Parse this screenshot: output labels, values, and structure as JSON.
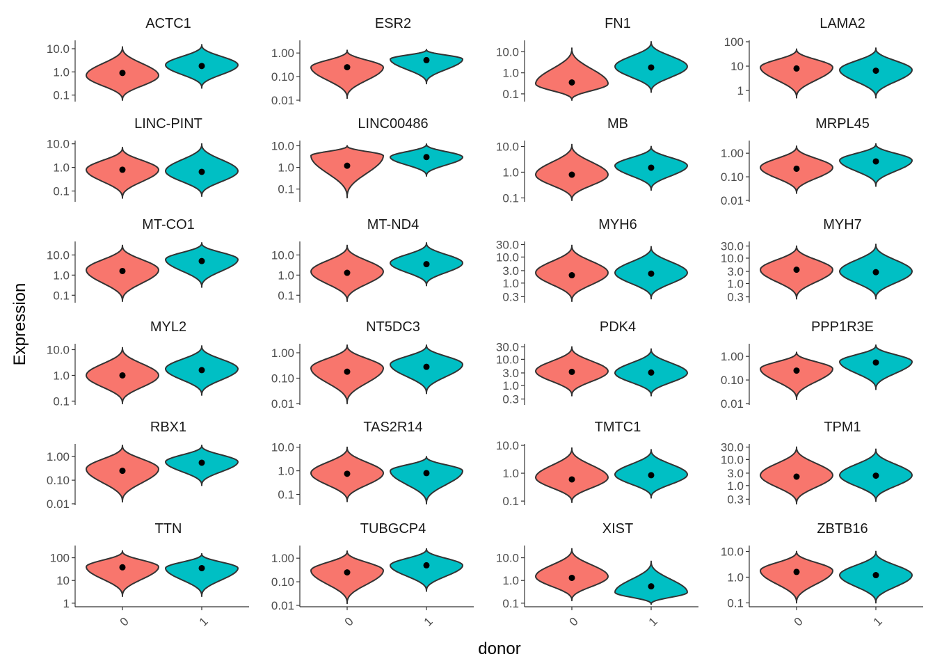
{
  "chart_data": {
    "type": "violin",
    "facet_layout": "6 rows x 4 columns",
    "xlabel": "donor",
    "ylabel": "Expression",
    "y_scale": "log10",
    "categories": [
      "0",
      "1"
    ],
    "colors": {
      "0": "#F8766D",
      "1": "#00BFC4",
      "outline": "#333333",
      "point": "#000000"
    },
    "grid": false,
    "legend": "none",
    "panels": [
      {
        "title": "ACTC1",
        "ylim": [
          0.06,
          20
        ],
        "yticks": [
          "0.1",
          "1.0",
          "10.0"
        ],
        "violins": [
          {
            "category": "0",
            "min": 0.06,
            "max": 12,
            "mode": 0.7,
            "median": 0.9
          },
          {
            "category": "1",
            "min": 0.2,
            "max": 15,
            "mode": 2.0,
            "median": 1.8
          }
        ]
      },
      {
        "title": "ESR2",
        "ylim": [
          0.01,
          3
        ],
        "yticks": [
          "0.01",
          "0.10",
          "1.00"
        ],
        "violins": [
          {
            "category": "0",
            "min": 0.012,
            "max": 1.3,
            "mode": 0.25,
            "median": 0.25
          },
          {
            "category": "1",
            "min": 0.05,
            "max": 1.4,
            "mode": 0.55,
            "median": 0.5
          }
        ]
      },
      {
        "title": "FN1",
        "ylim": [
          0.05,
          30
        ],
        "yticks": [
          "0.1",
          "1.0",
          "10.0"
        ],
        "violins": [
          {
            "category": "0",
            "min": 0.05,
            "max": 15,
            "mode": 0.3,
            "median": 0.35
          },
          {
            "category": "1",
            "min": 0.12,
            "max": 30,
            "mode": 2.0,
            "median": 1.8
          }
        ]
      },
      {
        "title": "LAMA2",
        "ylim": [
          0.4,
          100
        ],
        "yticks": [
          "1",
          "10",
          "100"
        ],
        "violins": [
          {
            "category": "0",
            "min": 0.5,
            "max": 50,
            "mode": 9,
            "median": 8
          },
          {
            "category": "1",
            "min": 0.5,
            "max": 55,
            "mode": 7,
            "median": 6.5
          }
        ]
      },
      {
        "title": "LINC-PINT",
        "ylim": [
          0.04,
          12
        ],
        "yticks": [
          "0.1",
          "1.0",
          "10.0"
        ],
        "violins": [
          {
            "category": "0",
            "min": 0.05,
            "max": 7,
            "mode": 0.8,
            "median": 0.8
          },
          {
            "category": "1",
            "min": 0.06,
            "max": 10,
            "mode": 0.7,
            "median": 0.65
          }
        ]
      },
      {
        "title": "LINC00486",
        "ylim": [
          0.03,
          15
        ],
        "yticks": [
          "0.1",
          "1.0",
          "10.0"
        ],
        "violins": [
          {
            "category": "0",
            "min": 0.04,
            "max": 10,
            "mode": 3.5,
            "median": 1.2
          },
          {
            "category": "1",
            "min": 0.4,
            "max": 12,
            "mode": 3.0,
            "median": 3.0
          }
        ]
      },
      {
        "title": "MB",
        "ylim": [
          0.08,
          15
        ],
        "yticks": [
          "0.1",
          "1.0",
          "10.0"
        ],
        "violins": [
          {
            "category": "0",
            "min": 0.08,
            "max": 12,
            "mode": 0.8,
            "median": 0.8
          },
          {
            "category": "1",
            "min": 0.2,
            "max": 10,
            "mode": 1.8,
            "median": 1.5
          }
        ]
      },
      {
        "title": "MRPL45",
        "ylim": [
          0.01,
          3
        ],
        "yticks": [
          "0.01",
          "0.10",
          "1.00"
        ],
        "violins": [
          {
            "category": "0",
            "min": 0.02,
            "max": 2,
            "mode": 0.25,
            "median": 0.22
          },
          {
            "category": "1",
            "min": 0.04,
            "max": 2.5,
            "mode": 0.5,
            "median": 0.45
          }
        ]
      },
      {
        "title": "MT-CO1",
        "ylim": [
          0.05,
          40
        ],
        "yticks": [
          "0.1",
          "1.0",
          "10.0"
        ],
        "violins": [
          {
            "category": "0",
            "min": 0.05,
            "max": 30,
            "mode": 1.8,
            "median": 1.6
          },
          {
            "category": "1",
            "min": 0.25,
            "max": 40,
            "mode": 6,
            "median": 5
          }
        ]
      },
      {
        "title": "MT-ND4",
        "ylim": [
          0.05,
          40
        ],
        "yticks": [
          "0.1",
          "1.0",
          "10.0"
        ],
        "violins": [
          {
            "category": "0",
            "min": 0.05,
            "max": 30,
            "mode": 1.5,
            "median": 1.3
          },
          {
            "category": "1",
            "min": 0.3,
            "max": 40,
            "mode": 4,
            "median": 3.5
          }
        ]
      },
      {
        "title": "MYH6",
        "ylim": [
          0.2,
          35
        ],
        "yticks": [
          "0.3",
          "1.0",
          "3.0",
          "10.0",
          "30.0"
        ],
        "violins": [
          {
            "category": "0",
            "min": 0.2,
            "max": 28,
            "mode": 2.5,
            "median": 2.0
          },
          {
            "category": "1",
            "min": 0.25,
            "max": 25,
            "mode": 2.5,
            "median": 2.3
          }
        ]
      },
      {
        "title": "MYH7",
        "ylim": [
          0.2,
          40
        ],
        "yticks": [
          "0.3",
          "1.0",
          "3.0",
          "10.0",
          "30.0"
        ],
        "violins": [
          {
            "category": "0",
            "min": 0.25,
            "max": 30,
            "mode": 3.5,
            "median": 3.5
          },
          {
            "category": "1",
            "min": 0.25,
            "max": 35,
            "mode": 3.0,
            "median": 2.8
          }
        ]
      },
      {
        "title": "MYL2",
        "ylim": [
          0.08,
          15
        ],
        "yticks": [
          "0.1",
          "1.0",
          "10.0"
        ],
        "violins": [
          {
            "category": "0",
            "min": 0.08,
            "max": 12,
            "mode": 1.0,
            "median": 1.0
          },
          {
            "category": "1",
            "min": 0.17,
            "max": 14,
            "mode": 1.8,
            "median": 1.6
          }
        ]
      },
      {
        "title": "NT5DC3",
        "ylim": [
          0.01,
          2
        ],
        "yticks": [
          "0.01",
          "0.10",
          "1.00"
        ],
        "violins": [
          {
            "category": "0",
            "min": 0.01,
            "max": 2,
            "mode": 0.25,
            "median": 0.18
          },
          {
            "category": "1",
            "min": 0.025,
            "max": 2,
            "mode": 0.35,
            "median": 0.28
          }
        ]
      },
      {
        "title": "PDK4",
        "ylim": [
          0.2,
          35
        ],
        "yticks": [
          "0.3",
          "1.0",
          "3.0",
          "10.0",
          "30.0"
        ],
        "violins": [
          {
            "category": "0",
            "min": 0.4,
            "max": 30,
            "mode": 3.5,
            "median": 3.3
          },
          {
            "category": "1",
            "min": 0.4,
            "max": 25,
            "mode": 3.0,
            "median": 3.1
          }
        ]
      },
      {
        "title": "PPP1R3E",
        "ylim": [
          0.01,
          3
        ],
        "yticks": [
          "0.01",
          "0.10",
          "1.00"
        ],
        "violins": [
          {
            "category": "0",
            "min": 0.015,
            "max": 1.5,
            "mode": 0.3,
            "median": 0.25
          },
          {
            "category": "1",
            "min": 0.04,
            "max": 3,
            "mode": 0.6,
            "median": 0.55
          }
        ]
      },
      {
        "title": "RBX1",
        "ylim": [
          0.01,
          3
        ],
        "yticks": [
          "0.01",
          "0.10",
          "1.00"
        ],
        "violins": [
          {
            "category": "0",
            "min": 0.012,
            "max": 3,
            "mode": 0.3,
            "median": 0.25
          },
          {
            "category": "1",
            "min": 0.06,
            "max": 3,
            "mode": 0.6,
            "median": 0.55
          }
        ]
      },
      {
        "title": "TAS2R14",
        "ylim": [
          0.04,
          12
        ],
        "yticks": [
          "0.1",
          "1.0",
          "10.0"
        ],
        "violins": [
          {
            "category": "0",
            "min": 0.05,
            "max": 10,
            "mode": 0.8,
            "median": 0.75
          },
          {
            "category": "1",
            "min": 0.04,
            "max": 4,
            "mode": 1.0,
            "median": 0.8
          }
        ]
      },
      {
        "title": "TMTC1",
        "ylim": [
          0.08,
          10
        ],
        "yticks": [
          "0.1",
          "1.0",
          "10.0"
        ],
        "violins": [
          {
            "category": "0",
            "min": 0.09,
            "max": 8,
            "mode": 0.7,
            "median": 0.6
          },
          {
            "category": "1",
            "min": 0.13,
            "max": 7,
            "mode": 0.9,
            "median": 0.85
          }
        ]
      },
      {
        "title": "TPM1",
        "ylim": [
          0.2,
          35
        ],
        "yticks": [
          "0.3",
          "1.0",
          "3.0",
          "10.0",
          "30.0"
        ],
        "violins": [
          {
            "category": "0",
            "min": 0.2,
            "max": 30,
            "mode": 2.5,
            "median": 2.2
          },
          {
            "category": "1",
            "min": 0.25,
            "max": 25,
            "mode": 2.5,
            "median": 2.4
          }
        ]
      },
      {
        "title": "TTN",
        "ylim": [
          0.8,
          300
        ],
        "yticks": [
          "1",
          "10",
          "100"
        ],
        "violins": [
          {
            "category": "0",
            "min": 2,
            "max": 200,
            "mode": 40,
            "median": 38
          },
          {
            "category": "1",
            "min": 2,
            "max": 150,
            "mode": 35,
            "median": 35
          }
        ]
      },
      {
        "title": "TUBGCP4",
        "ylim": [
          0.01,
          3
        ],
        "yticks": [
          "0.01",
          "0.10",
          "1.00"
        ],
        "violins": [
          {
            "category": "0",
            "min": 0.012,
            "max": 2,
            "mode": 0.3,
            "median": 0.25
          },
          {
            "category": "1",
            "min": 0.04,
            "max": 2.5,
            "mode": 0.5,
            "median": 0.5
          }
        ]
      },
      {
        "title": "XIST",
        "ylim": [
          0.08,
          30
        ],
        "yticks": [
          "0.1",
          "1.0",
          "10.0"
        ],
        "violins": [
          {
            "category": "0",
            "min": 0.13,
            "max": 25,
            "mode": 1.5,
            "median": 1.3
          },
          {
            "category": "1",
            "min": 0.09,
            "max": 7,
            "mode": 0.3,
            "median": 0.55
          }
        ]
      },
      {
        "title": "ZBTB16",
        "ylim": [
          0.08,
          15
        ],
        "yticks": [
          "0.1",
          "1.0",
          "10.0"
        ],
        "violins": [
          {
            "category": "0",
            "min": 0.1,
            "max": 10,
            "mode": 1.8,
            "median": 1.6
          },
          {
            "category": "1",
            "min": 0.1,
            "max": 10,
            "mode": 1.2,
            "median": 1.2
          }
        ]
      }
    ]
  }
}
